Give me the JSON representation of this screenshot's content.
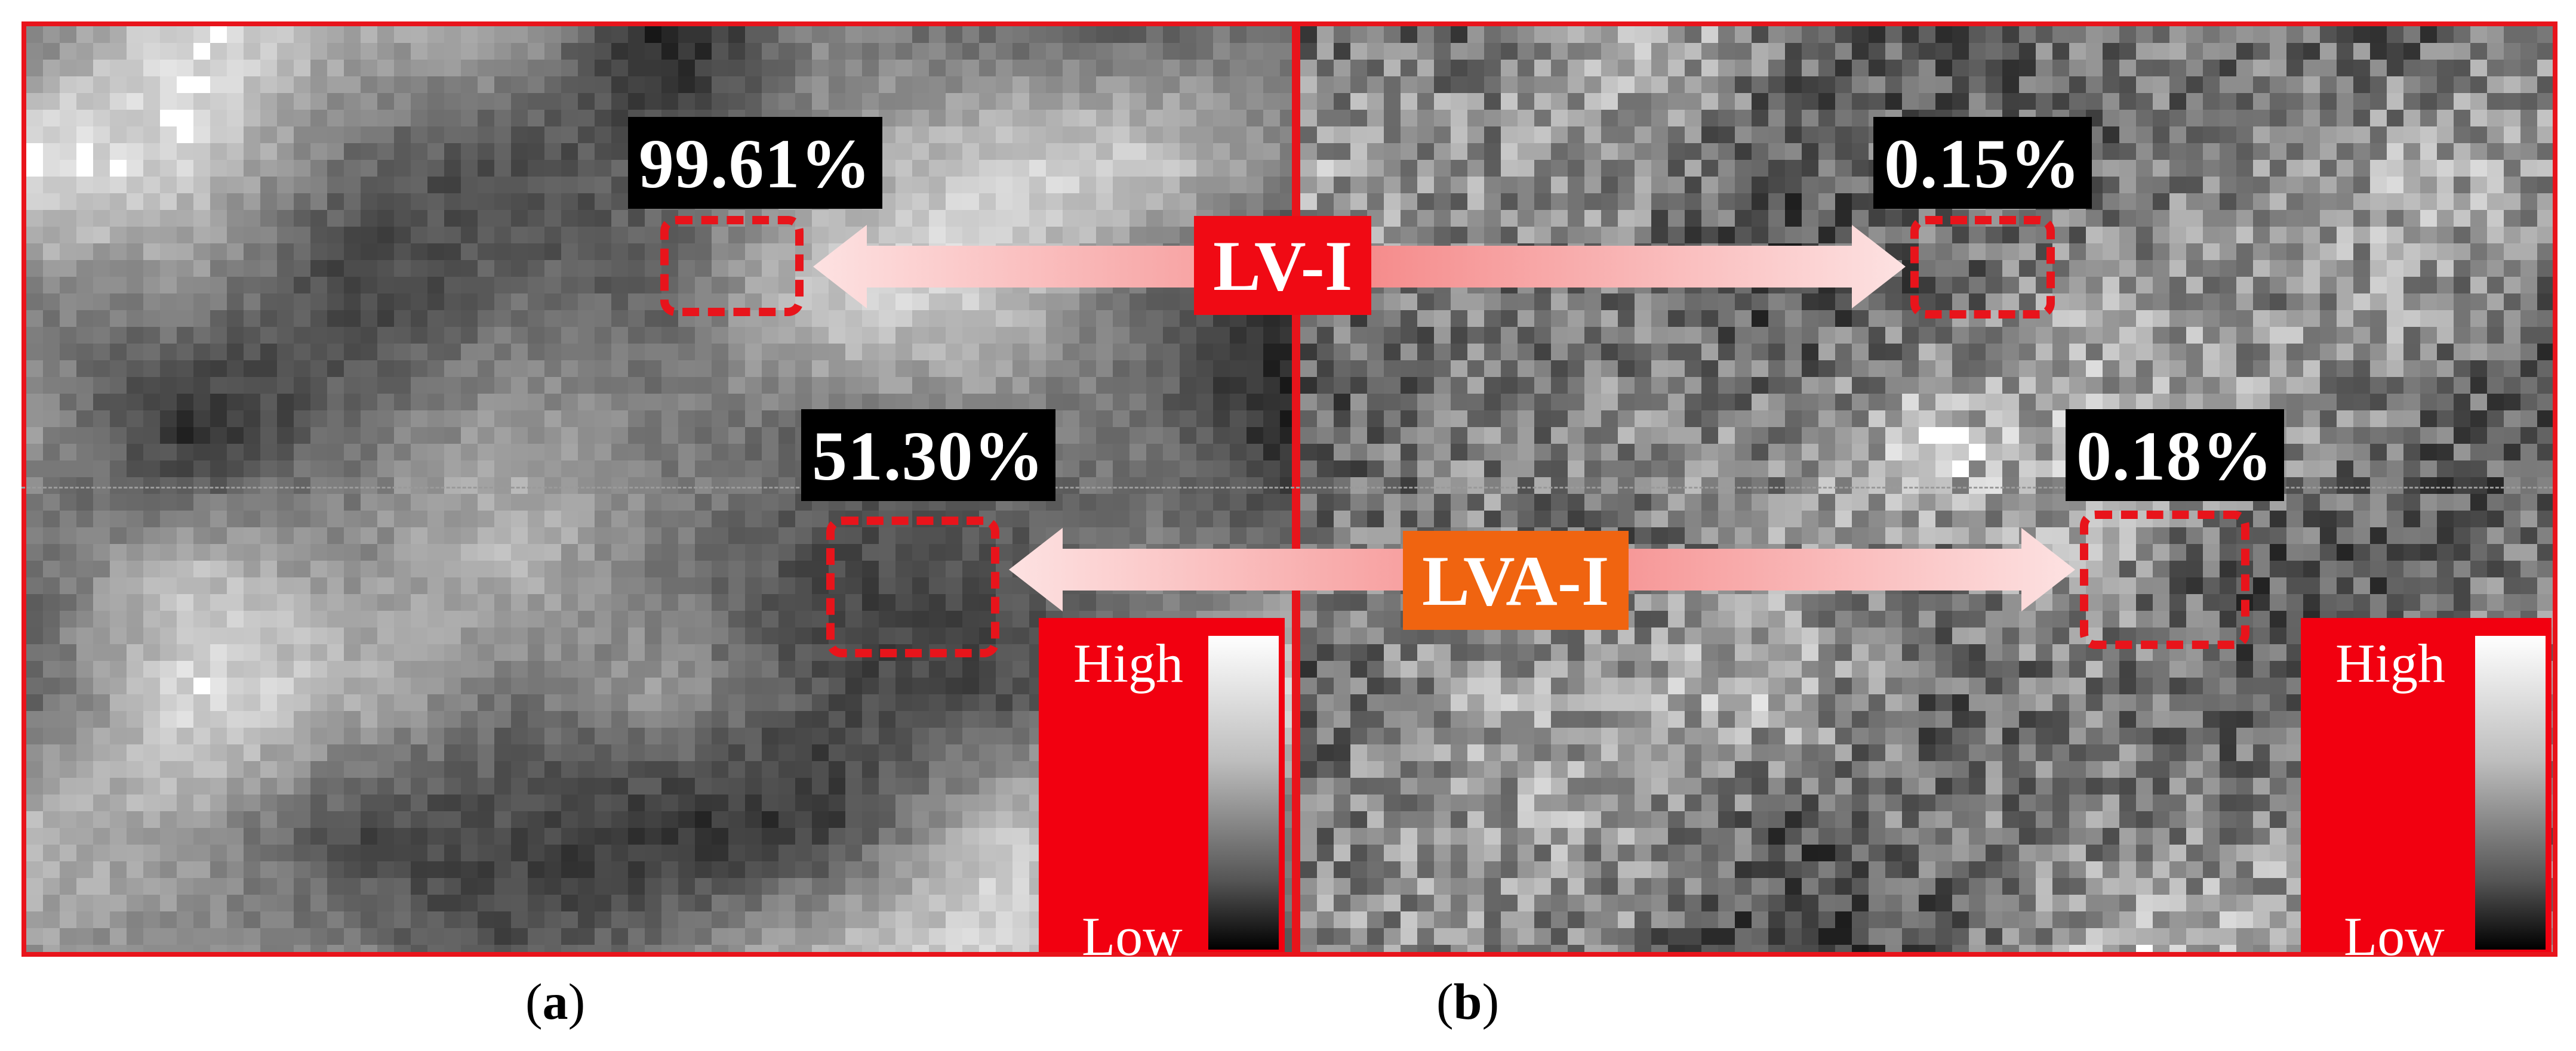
{
  "panels": [
    {
      "id": "a",
      "caption_letter": "a",
      "rois": [
        {
          "percent_label": "99.61%"
        },
        {
          "percent_label": "51.30%"
        }
      ],
      "legend": {
        "high_label": "High",
        "low_label": "Low"
      }
    },
    {
      "id": "b",
      "caption_letter": "b",
      "rois": [
        {
          "percent_label": "0.15%"
        },
        {
          "percent_label": "0.18%"
        }
      ],
      "legend": {
        "high_label": "High",
        "low_label": "Low"
      }
    }
  ],
  "metrics": {
    "lv_label": "LV-I",
    "lva_label": "LVA-I"
  },
  "colors": {
    "frame": "#e8141b",
    "roi_outline": "#e8141b",
    "lv_badge": "#f00a14",
    "lva_badge": "#f06410",
    "arrow": "#f7a0a0",
    "legend_panel": "#f20010"
  }
}
